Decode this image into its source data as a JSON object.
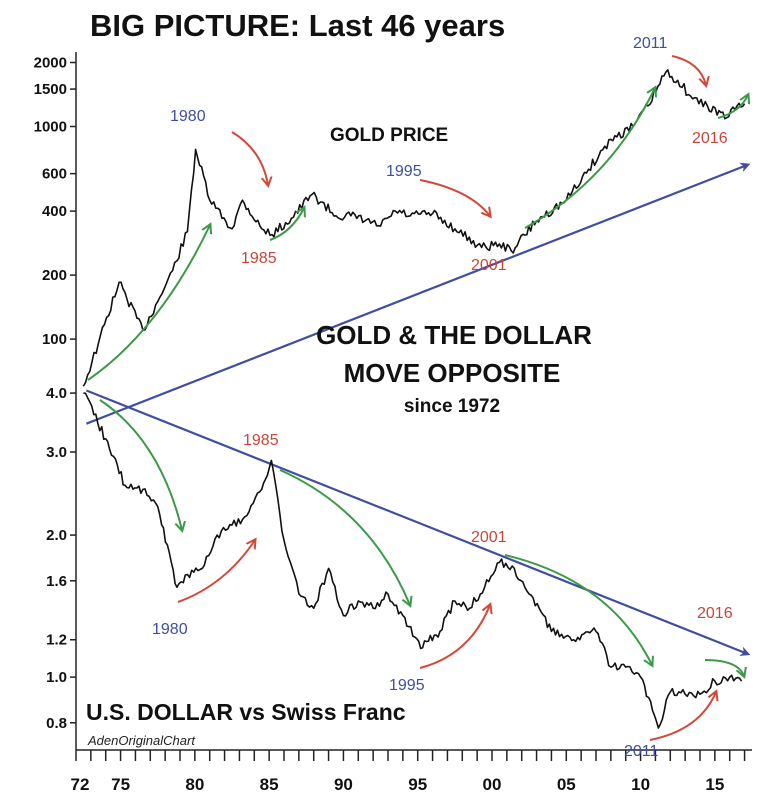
{
  "chart_data": {
    "type": "line",
    "title": "BIG PICTURE: Last 46 years",
    "credit": "AdenOriginalChart",
    "colors": {
      "series": "#111111",
      "trend": "#3f4ea0",
      "up_arrow": "#3c9a47",
      "down_arrow": "#d2493a",
      "red_text": "#c8473a",
      "blue_text": "#3f4ea0"
    },
    "x_ticks": [
      "72",
      "75",
      "80",
      "85",
      "90",
      "95",
      "00",
      "05",
      "10",
      "15"
    ],
    "xlim": [
      1972,
      2017.5
    ],
    "panels": [
      {
        "name": "GOLD PRICE",
        "scale": "log",
        "ylim": [
          70,
          2100
        ],
        "y_ticks": [
          2000,
          1500,
          1000,
          600,
          400,
          200,
          100
        ],
        "y_tick_labels": [
          "2000",
          "1500",
          "1000",
          "600",
          "400",
          "200",
          "100"
        ],
        "x": [
          1972.5,
          1973.5,
          1974.9,
          1976.5,
          1977.5,
          1978.5,
          1979.5,
          1980.05,
          1981.0,
          1982.5,
          1983.2,
          1984.5,
          1985.2,
          1986.5,
          1987.9,
          1989.5,
          1990.5,
          1992.5,
          1993.5,
          1994.5,
          1996.0,
          1997.5,
          1999.3,
          2000.5,
          2001.3,
          2003.0,
          2005.0,
          2006.5,
          2008.0,
          2009.5,
          2010.5,
          2011.7,
          2012.5,
          2013.5,
          2014.5,
          2015.8,
          2016.5,
          2017.0
        ],
        "y": [
          60,
          95,
          185,
          110,
          150,
          210,
          320,
          780,
          450,
          330,
          450,
          330,
          310,
          370,
          480,
          380,
          380,
          340,
          400,
          380,
          390,
          330,
          270,
          280,
          260,
          360,
          450,
          630,
          870,
          1000,
          1250,
          1800,
          1650,
          1350,
          1250,
          1100,
          1250,
          1280
        ],
        "trend": [
          [
            1972.7,
            40
          ],
          [
            2017.2,
            660
          ]
        ],
        "annotations": [
          {
            "text": "1980",
            "color": "blue"
          },
          {
            "text": "1985",
            "color": "red"
          },
          {
            "text": "1995",
            "color": "blue"
          },
          {
            "text": "2001",
            "color": "red"
          },
          {
            "text": "2011",
            "color": "blue"
          },
          {
            "text": "2016",
            "color": "red"
          }
        ]
      },
      {
        "name": "U.S. DOLLAR vs Swiss Franc",
        "scale": "log",
        "ylim": [
          0.78,
          4.1
        ],
        "y_ticks": [
          4.0,
          3.0,
          2.0,
          1.6,
          1.2,
          1.0,
          0.8
        ],
        "y_tick_labels": [
          "4.0",
          "3.0",
          "2.0",
          "1.6",
          "1.2",
          "1.0",
          "0.8"
        ],
        "x": [
          1972.5,
          1973.2,
          1974.0,
          1975.3,
          1976.5,
          1977.5,
          1978.8,
          1979.5,
          1980.5,
          1981.5,
          1982.5,
          1983.5,
          1984.5,
          1985.15,
          1986.0,
          1987.0,
          1988.0,
          1989.0,
          1990.0,
          1991.0,
          1992.0,
          1993.0,
          1994.0,
          1995.2,
          1996.5,
          1997.5,
          1998.5,
          1999.5,
          2000.5,
          2001.5,
          2002.5,
          2004.0,
          2005.5,
          2007.0,
          2008.0,
          2009.0,
          2010.0,
          2011.2,
          2012.0,
          2013.0,
          2014.0,
          2015.0,
          2016.0,
          2016.8
        ],
        "y": [
          4.0,
          3.6,
          3.2,
          2.55,
          2.5,
          2.3,
          1.55,
          1.65,
          1.7,
          2.0,
          2.1,
          2.2,
          2.5,
          2.88,
          1.95,
          1.5,
          1.4,
          1.7,
          1.35,
          1.45,
          1.4,
          1.5,
          1.35,
          1.15,
          1.25,
          1.45,
          1.4,
          1.55,
          1.75,
          1.7,
          1.5,
          1.25,
          1.2,
          1.25,
          1.05,
          1.05,
          1.0,
          0.78,
          0.93,
          0.92,
          0.92,
          0.98,
          1.0,
          0.98
        ],
        "trend": [
          [
            1972.7,
            4.05
          ],
          [
            2017.2,
            1.12
          ]
        ],
        "annotations": [
          {
            "text": "1980",
            "color": "blue"
          },
          {
            "text": "1985",
            "color": "red"
          },
          {
            "text": "1995",
            "color": "blue"
          },
          {
            "text": "2001",
            "color": "red"
          },
          {
            "text": "2011",
            "color": "blue"
          },
          {
            "text": "2016",
            "color": "red"
          }
        ]
      }
    ],
    "middle_text": [
      "GOLD & THE DOLLAR",
      "MOVE OPPOSITE",
      "since 1972"
    ]
  }
}
